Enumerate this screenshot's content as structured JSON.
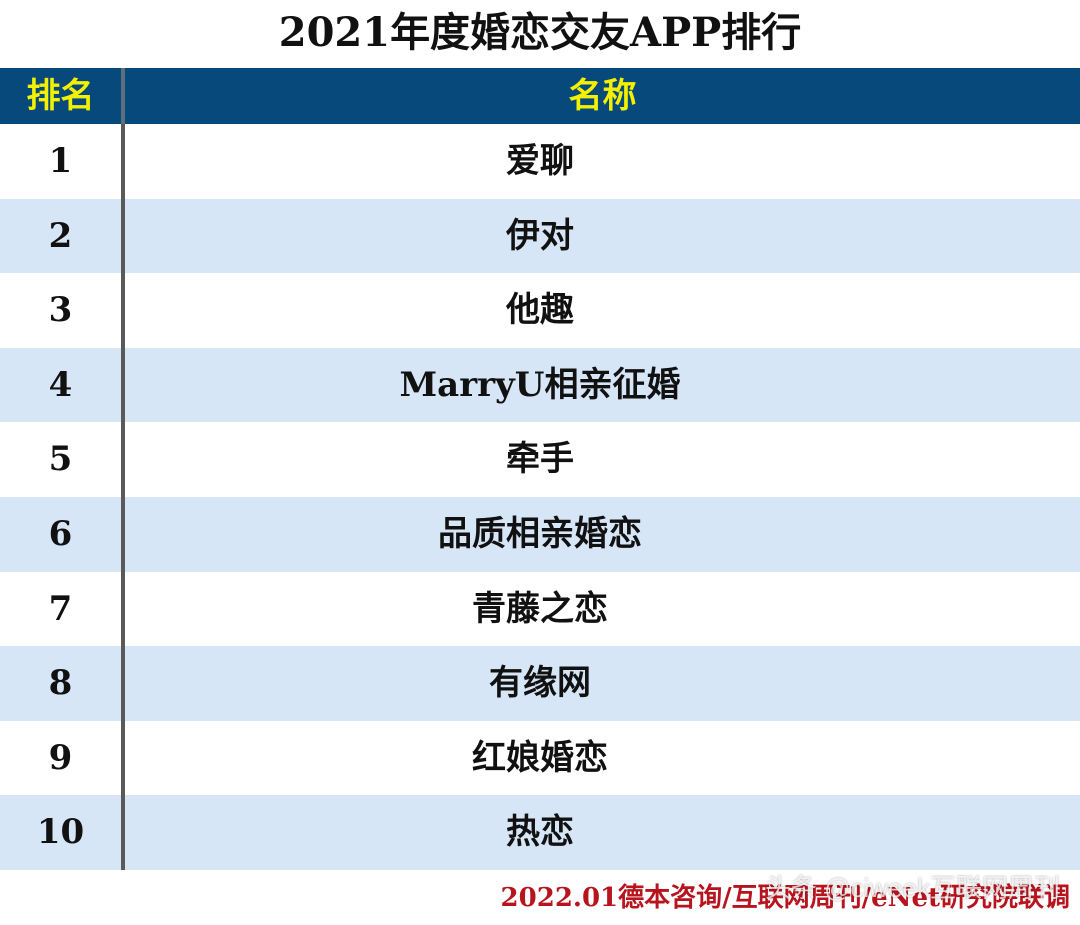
{
  "title": "2021年度婚恋交友APP排行",
  "table": {
    "headers": {
      "rank": "排名",
      "name": "名称"
    },
    "rows": [
      {
        "rank": "1",
        "name": "爱聊"
      },
      {
        "rank": "2",
        "name": "伊对"
      },
      {
        "rank": "3",
        "name": "他趣"
      },
      {
        "rank": "4",
        "name": "MarryU相亲征婚"
      },
      {
        "rank": "5",
        "name": "牵手"
      },
      {
        "rank": "6",
        "name": "品质相亲婚恋"
      },
      {
        "rank": "7",
        "name": "青藤之恋"
      },
      {
        "rank": "8",
        "name": "有缘网"
      },
      {
        "rank": "9",
        "name": "红娘婚恋"
      },
      {
        "rank": "10",
        "name": "热恋"
      }
    ]
  },
  "source": "2022.01德本咨询/互联网周刊/eNet研究院联调",
  "watermark": "头条 @ciweek互联网周刊",
  "colors": {
    "header_bg": "#07497b",
    "header_text": "#f3f100",
    "row_alt_bg": "#d6e6f6",
    "source_text": "#b8141e"
  }
}
